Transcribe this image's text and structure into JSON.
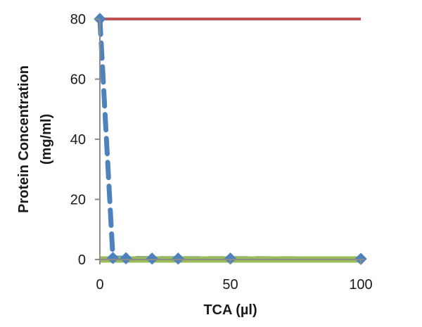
{
  "chart_data": {
    "type": "line",
    "title": "",
    "xlabel": "TCA (µl)",
    "ylabel": [
      "Protein Concentration",
      "(mg/ml)"
    ],
    "xlim": [
      0,
      100
    ],
    "ylim": [
      0,
      80
    ],
    "xticks": [
      0,
      50,
      100
    ],
    "yticks": [
      0,
      20,
      40,
      60,
      80
    ],
    "grid": false,
    "legend": "none",
    "series": [
      {
        "color": "#c0504d",
        "style": "solid",
        "marker": "none",
        "x": [
          0,
          100
        ],
        "y": [
          80,
          80
        ]
      },
      {
        "color": "#4f81bd",
        "style": "dashed",
        "marker": "diamond",
        "x": [
          0,
          5,
          10,
          20,
          30,
          50,
          100
        ],
        "y": [
          80,
          0.5,
          0.4,
          0.3,
          0.3,
          0.3,
          0.2
        ]
      },
      {
        "color": "#9bbb59",
        "style": "solid",
        "marker": "none",
        "x": [
          0,
          100
        ],
        "y": [
          0,
          0
        ]
      }
    ]
  }
}
